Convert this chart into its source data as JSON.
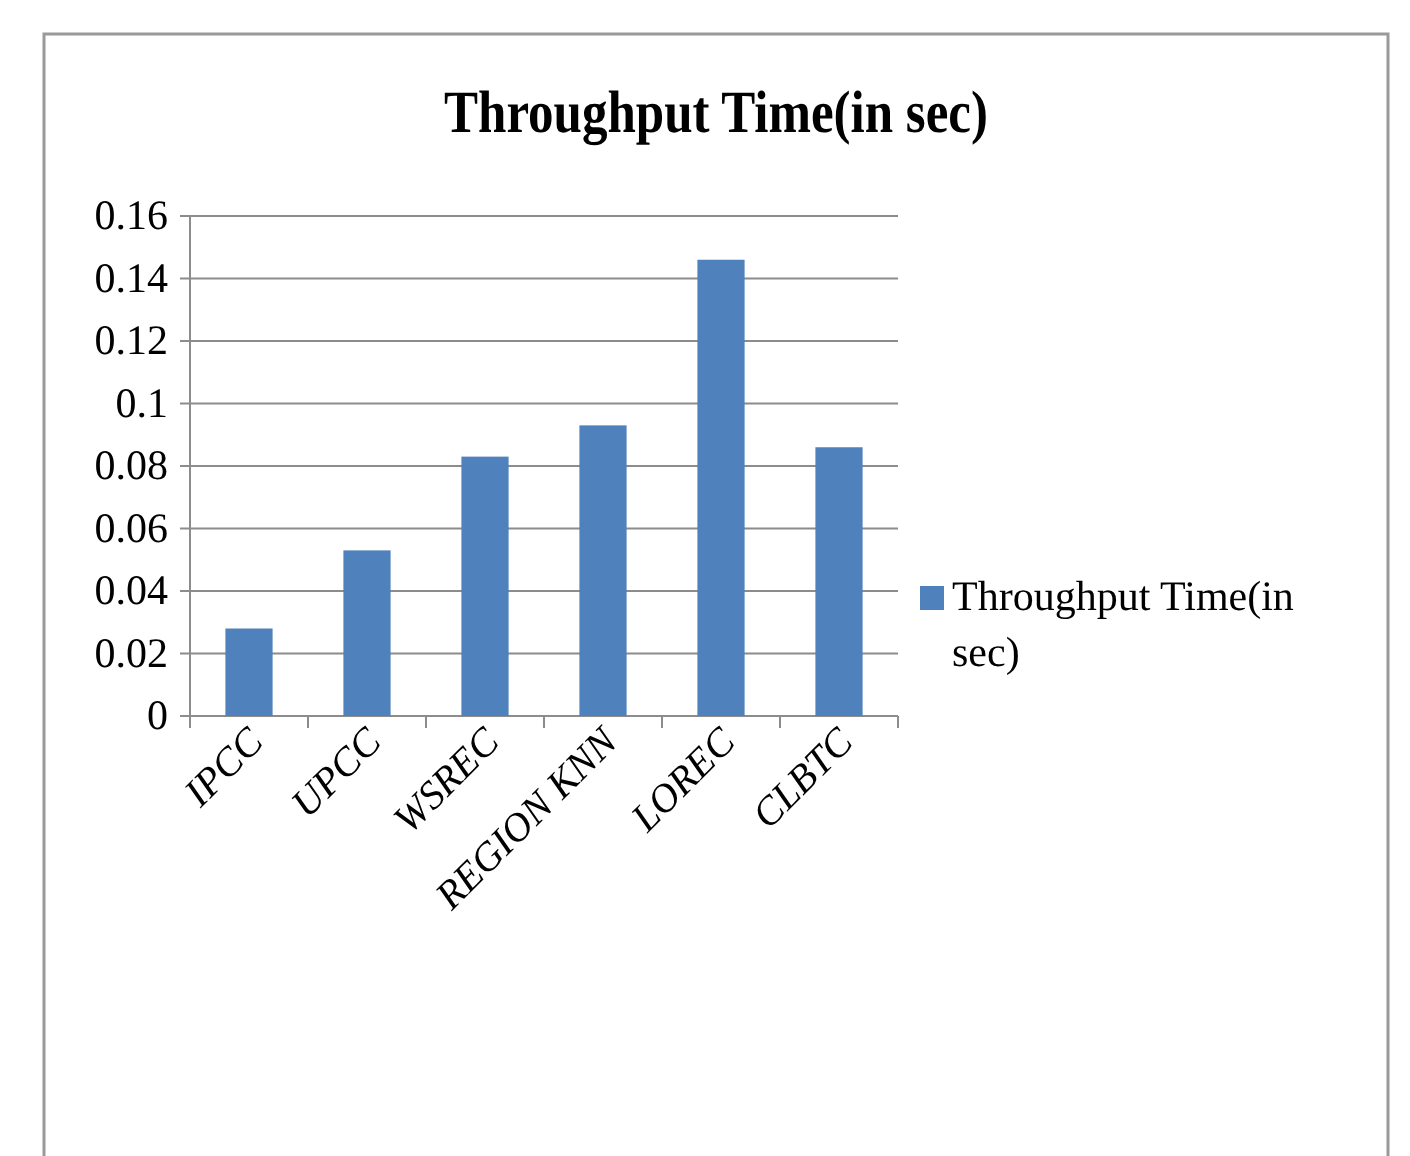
{
  "chart_data": {
    "type": "bar",
    "title": "Throughput Time(in sec)",
    "categories": [
      "IPCC",
      "UPCC",
      "WSREC",
      "REGION KNN",
      "LOREC",
      "CLBTC"
    ],
    "series": [
      {
        "name": "Throughput Time(in sec)",
        "color": "#4f81bd",
        "values": [
          0.028,
          0.053,
          0.083,
          0.093,
          0.146,
          0.086
        ]
      }
    ],
    "ylim": [
      0,
      0.16
    ],
    "yticks": [
      0,
      0.02,
      0.04,
      0.06,
      0.08,
      0.1,
      0.12,
      0.14,
      0.16
    ],
    "grid": "y",
    "legend": "right"
  }
}
